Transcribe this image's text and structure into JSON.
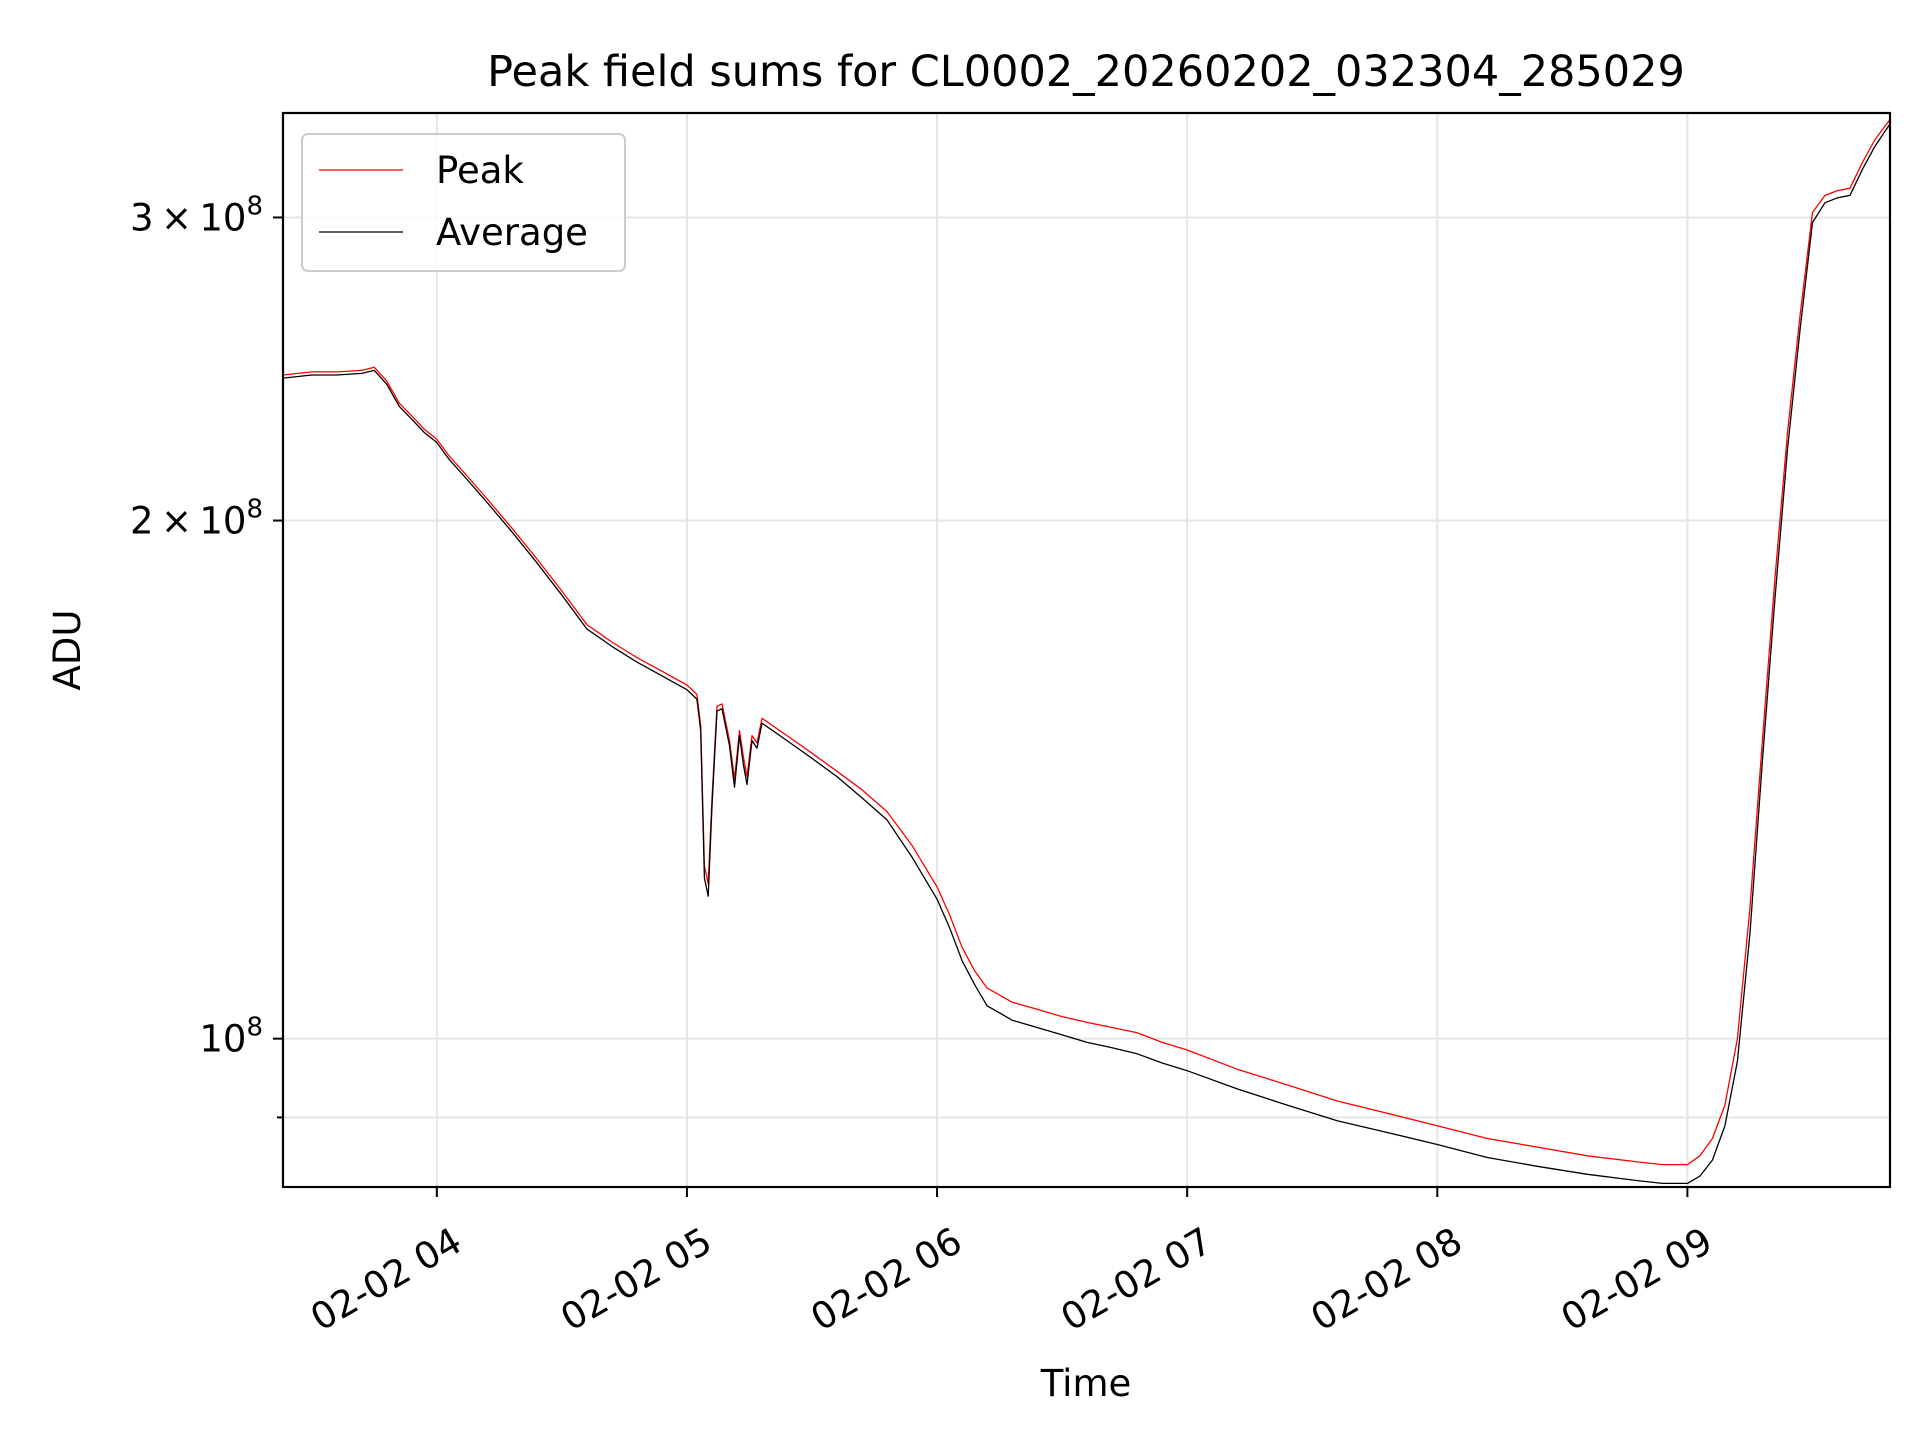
{
  "chart_data": {
    "type": "line",
    "title": "Peak field sums for CL0002_20260202_032304_285029",
    "xlabel": "Time",
    "ylabel": "ADU",
    "x_unit": "hours since 2026-02-02 00:00",
    "xlim": [
      3.385,
      9.81
    ],
    "ylim": [
      82000000,
      345000000
    ],
    "y_scale": "log",
    "grid": true,
    "legend_position": "upper-left",
    "x_ticks": [
      {
        "value": 4,
        "label": "02-02 04"
      },
      {
        "value": 5,
        "label": "02-02 05"
      },
      {
        "value": 6,
        "label": "02-02 06"
      },
      {
        "value": 7,
        "label": "02-02 07"
      },
      {
        "value": 8,
        "label": "02-02 08"
      },
      {
        "value": 9,
        "label": "02-02 09"
      }
    ],
    "y_ticks": [
      {
        "value": 100000000,
        "mantissa": "",
        "exponent": "8",
        "label": "10^8"
      },
      {
        "value": 200000000,
        "mantissa": "2",
        "exponent": "8",
        "label": "2×10^8"
      },
      {
        "value": 300000000,
        "mantissa": "3",
        "exponent": "8",
        "label": "3×10^8"
      }
    ],
    "y_minor_ticks": [
      90000000
    ],
    "series": [
      {
        "name": "Peak",
        "color": "#ff0000",
        "x": [
          3.385,
          3.5,
          3.6,
          3.7,
          3.75,
          3.8,
          3.85,
          3.9,
          3.95,
          4.0,
          4.05,
          4.1,
          4.2,
          4.3,
          4.4,
          4.5,
          4.6,
          4.7,
          4.8,
          4.9,
          5.0,
          5.02,
          5.04,
          5.055,
          5.07,
          5.085,
          5.1,
          5.12,
          5.14,
          5.17,
          5.19,
          5.21,
          5.225,
          5.24,
          5.26,
          5.28,
          5.3,
          5.4,
          5.5,
          5.6,
          5.7,
          5.8,
          5.9,
          6.0,
          6.05,
          6.1,
          6.15,
          6.2,
          6.25,
          6.3,
          6.4,
          6.5,
          6.6,
          6.7,
          6.8,
          6.9,
          7.0,
          7.2,
          7.4,
          7.6,
          7.8,
          8.0,
          8.2,
          8.4,
          8.6,
          8.8,
          8.9,
          9.0,
          9.05,
          9.1,
          9.15,
          9.2,
          9.25,
          9.3,
          9.35,
          9.4,
          9.45,
          9.5,
          9.55,
          9.6,
          9.65,
          9.7,
          9.75,
          9.81
        ],
        "y": [
          243000000,
          244000000,
          244000000,
          244500000,
          245500000,
          241000000,
          234000000,
          230000000,
          226000000,
          223000000,
          218000000,
          214000000,
          206000000,
          198000000,
          190000000,
          182000000,
          174000000,
          170000000,
          166500000,
          163500000,
          160500000,
          159500000,
          158500000,
          152000000,
          126000000,
          123000000,
          138000000,
          156000000,
          156500000,
          149000000,
          141500000,
          151000000,
          146000000,
          142000000,
          150000000,
          148500000,
          153500000,
          150000000,
          146500000,
          143000000,
          139500000,
          135500000,
          129500000,
          122500000,
          118000000,
          113000000,
          109500000,
          107000000,
          106000000,
          105000000,
          104000000,
          103000000,
          102200000,
          101500000,
          100800000,
          99500000,
          98500000,
          96000000,
          94000000,
          92000000,
          90500000,
          89000000,
          87500000,
          86500000,
          85500000,
          84800000,
          84500000,
          84500000,
          85500000,
          87500000,
          91500000,
          100000000,
          119000000,
          149000000,
          185000000,
          225000000,
          263000000,
          302000000,
          309000000,
          311000000,
          312000000,
          323000000,
          333000000,
          342000000
        ]
      },
      {
        "name": "Average",
        "color": "#000000",
        "x": [
          3.385,
          3.5,
          3.6,
          3.7,
          3.75,
          3.8,
          3.85,
          3.9,
          3.95,
          4.0,
          4.05,
          4.1,
          4.2,
          4.3,
          4.4,
          4.5,
          4.6,
          4.7,
          4.8,
          4.9,
          5.0,
          5.02,
          5.04,
          5.055,
          5.07,
          5.085,
          5.1,
          5.12,
          5.14,
          5.17,
          5.19,
          5.21,
          5.225,
          5.24,
          5.26,
          5.28,
          5.3,
          5.4,
          5.5,
          5.6,
          5.7,
          5.8,
          5.9,
          6.0,
          6.05,
          6.1,
          6.15,
          6.2,
          6.25,
          6.3,
          6.4,
          6.5,
          6.6,
          6.7,
          6.8,
          6.9,
          7.0,
          7.2,
          7.4,
          7.6,
          7.8,
          8.0,
          8.2,
          8.4,
          8.6,
          8.8,
          8.9,
          9.0,
          9.05,
          9.1,
          9.15,
          9.2,
          9.25,
          9.3,
          9.35,
          9.4,
          9.45,
          9.5,
          9.55,
          9.6,
          9.65,
          9.7,
          9.75,
          9.81
        ],
        "y": [
          242000000,
          243000000,
          243000000,
          243500000,
          244500000,
          240000000,
          233000000,
          229000000,
          225000000,
          222000000,
          217000000,
          213000000,
          205000000,
          197000000,
          189000000,
          181000000,
          173000000,
          169000000,
          165500000,
          162500000,
          159500000,
          158500000,
          157500000,
          151000000,
          124000000,
          121000000,
          136500000,
          155000000,
          155500000,
          148000000,
          140000000,
          150000000,
          144500000,
          140500000,
          149000000,
          147500000,
          152500000,
          149000000,
          145500000,
          142000000,
          138000000,
          134000000,
          127500000,
          120500000,
          116000000,
          111000000,
          107500000,
          104500000,
          103500000,
          102500000,
          101500000,
          100500000,
          99500000,
          98800000,
          98000000,
          96800000,
          95800000,
          93500000,
          91500000,
          89600000,
          88200000,
          86800000,
          85300000,
          84300000,
          83400000,
          82700000,
          82400000,
          82400000,
          83200000,
          85000000,
          89000000,
          97000000,
          115000000,
          145000000,
          180000000,
          220000000,
          258000000,
          298000000,
          306000000,
          308000000,
          309000000,
          320000000,
          330000000,
          340000000
        ]
      }
    ]
  }
}
